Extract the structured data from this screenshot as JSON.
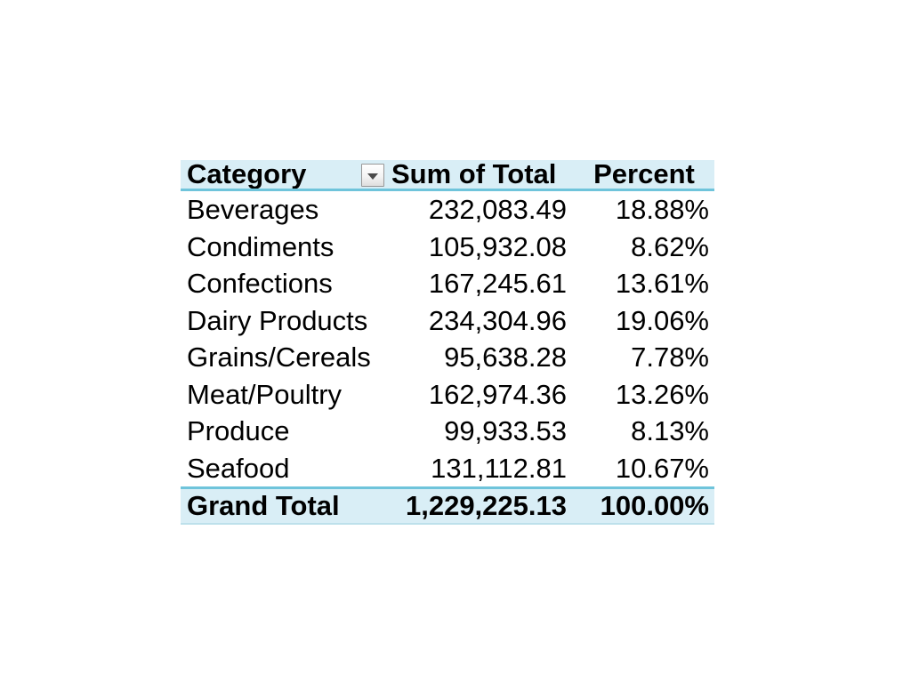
{
  "pivot_table": {
    "header": {
      "category_label": "Category",
      "sum_label": "Sum of Total",
      "percent_label": "Percent",
      "filter_icon": "dropdown-arrow-icon"
    },
    "rows": [
      {
        "category": "Beverages",
        "total": "232,083.49",
        "percent": "18.88%"
      },
      {
        "category": "Condiments",
        "total": "105,932.08",
        "percent": "8.62%"
      },
      {
        "category": "Confections",
        "total": "167,245.61",
        "percent": "13.61%"
      },
      {
        "category": "Dairy Products",
        "total": "234,304.96",
        "percent": "19.06%"
      },
      {
        "category": "Grains/Cereals",
        "total": "95,638.28",
        "percent": "7.78%"
      },
      {
        "category": "Meat/Poultry",
        "total": "162,974.36",
        "percent": "13.26%"
      },
      {
        "category": "Produce",
        "total": "99,933.53",
        "percent": "8.13%"
      },
      {
        "category": "Seafood",
        "total": "131,112.81",
        "percent": "10.67%"
      }
    ],
    "grand_total": {
      "category": "Grand Total",
      "total": "1,229,225.13",
      "percent": "100.00%"
    },
    "colors": {
      "header_bg": "#D9EEF6",
      "border": "#6FC4DB",
      "text": "#000000"
    }
  }
}
